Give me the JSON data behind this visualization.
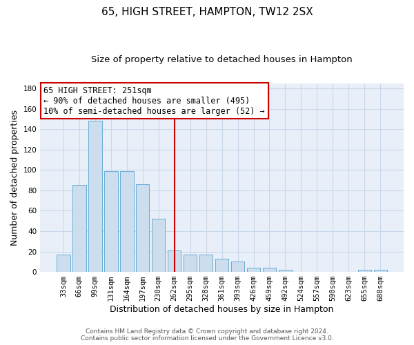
{
  "title": "65, HIGH STREET, HAMPTON, TW12 2SX",
  "subtitle": "Size of property relative to detached houses in Hampton",
  "xlabel": "Distribution of detached houses by size in Hampton",
  "ylabel": "Number of detached properties",
  "bar_labels": [
    "33sqm",
    "66sqm",
    "99sqm",
    "131sqm",
    "164sqm",
    "197sqm",
    "230sqm",
    "262sqm",
    "295sqm",
    "328sqm",
    "361sqm",
    "393sqm",
    "426sqm",
    "459sqm",
    "492sqm",
    "524sqm",
    "557sqm",
    "590sqm",
    "623sqm",
    "655sqm",
    "688sqm"
  ],
  "bar_values": [
    17,
    85,
    148,
    99,
    99,
    86,
    52,
    21,
    17,
    17,
    13,
    10,
    4,
    4,
    2,
    0,
    0,
    0,
    0,
    2,
    2
  ],
  "bar_color": "#ccdded",
  "bar_edgecolor": "#6aadd5",
  "vline_x_index": 7,
  "vline_color": "#cc0000",
  "annotation_text": "65 HIGH STREET: 251sqm\n← 90% of detached houses are smaller (495)\n10% of semi-detached houses are larger (52) →",
  "annotation_box_color": "white",
  "annotation_box_edgecolor": "#cc0000",
  "ylim": [
    0,
    185
  ],
  "yticks": [
    0,
    20,
    40,
    60,
    80,
    100,
    120,
    140,
    160,
    180
  ],
  "grid_color": "#c8d8ea",
  "background_color": "#e8eff8",
  "title_fontsize": 11,
  "subtitle_fontsize": 9.5,
  "axis_label_fontsize": 9,
  "tick_fontsize": 7.5,
  "annotation_fontsize": 8.5,
  "footer_fontsize": 6.5,
  "footer_color": "#555555"
}
